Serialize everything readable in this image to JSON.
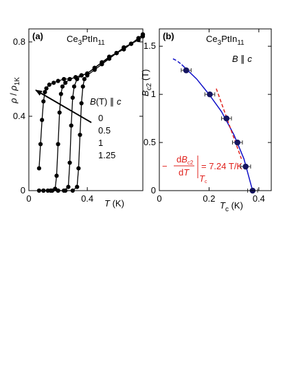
{
  "chart_data": [
    {
      "type": "line",
      "panel_label": "(a)",
      "title_parts": [
        "Ce",
        "3",
        "PtIn",
        "11"
      ],
      "xlabel_parts": [
        "T",
        " (K)"
      ],
      "ylabel_parts": [
        "ρ",
        " / ",
        "ρ",
        "1K"
      ],
      "legend_title_parts": [
        "B",
        "(T) ∥ ",
        "c"
      ],
      "xlim": [
        0,
        0.78
      ],
      "ylim": [
        0,
        0.87
      ],
      "xticks": [
        0,
        0.4
      ],
      "yticks": [
        0,
        0.4,
        0.8
      ],
      "marker": true,
      "series": [
        {
          "name": "0",
          "color": "#000000",
          "x": [
            0.15,
            0.2,
            0.25,
            0.3,
            0.33,
            0.34,
            0.35,
            0.36,
            0.37,
            0.38,
            0.4,
            0.45,
            0.5,
            0.55,
            0.6,
            0.65,
            0.7,
            0.75,
            0.78
          ],
          "values": [
            0,
            0,
            0,
            0,
            0.02,
            0.12,
            0.3,
            0.47,
            0.56,
            0.6,
            0.62,
            0.65,
            0.68,
            0.71,
            0.74,
            0.76,
            0.79,
            0.81,
            0.83
          ]
        },
        {
          "name": "0.5",
          "color": "#000000",
          "x": [
            0.1,
            0.15,
            0.2,
            0.24,
            0.27,
            0.28,
            0.29,
            0.3,
            0.31,
            0.33,
            0.36,
            0.4,
            0.45,
            0.5,
            0.55,
            0.6,
            0.65,
            0.7,
            0.75,
            0.78
          ],
          "values": [
            0,
            0,
            0,
            0,
            0.02,
            0.15,
            0.35,
            0.5,
            0.56,
            0.6,
            0.62,
            0.63,
            0.66,
            0.69,
            0.72,
            0.74,
            0.77,
            0.79,
            0.82,
            0.84
          ]
        },
        {
          "name": "1",
          "color": "#000000",
          "x": [
            0.07,
            0.1,
            0.13,
            0.16,
            0.18,
            0.19,
            0.2,
            0.21,
            0.22,
            0.23,
            0.25,
            0.28,
            0.32,
            0.36,
            0.4,
            0.45,
            0.5,
            0.55,
            0.6,
            0.65,
            0.7,
            0.75,
            0.78
          ],
          "values": [
            0,
            0,
            0,
            0,
            0.01,
            0.08,
            0.25,
            0.42,
            0.52,
            0.56,
            0.58,
            0.6,
            0.61,
            0.62,
            0.63,
            0.66,
            0.69,
            0.72,
            0.74,
            0.77,
            0.79,
            0.82,
            0.84
          ]
        },
        {
          "name": "1.25",
          "color": "#000000",
          "x": [
            0.07,
            0.08,
            0.09,
            0.1,
            0.11,
            0.12,
            0.14,
            0.17,
            0.2,
            0.24,
            0.28,
            0.32,
            0.36,
            0.4,
            0.45,
            0.5,
            0.55,
            0.6,
            0.65,
            0.7,
            0.75,
            0.78
          ],
          "values": [
            0.12,
            0.25,
            0.38,
            0.48,
            0.53,
            0.55,
            0.57,
            0.58,
            0.59,
            0.6,
            0.6,
            0.61,
            0.62,
            0.63,
            0.66,
            0.69,
            0.71,
            0.74,
            0.77,
            0.79,
            0.82,
            0.84
          ]
        }
      ]
    },
    {
      "type": "scatter",
      "panel_label": "(b)",
      "title_parts": [
        "Ce",
        "3",
        "PtIn",
        "11"
      ],
      "annotation_parts": [
        "B",
        " ∥ ",
        "c"
      ],
      "xlabel_parts": [
        "T",
        "c",
        " (K)"
      ],
      "ylabel_parts": [
        "B",
        "c2",
        " (T)"
      ],
      "xlim": [
        0,
        0.45
      ],
      "ylim": [
        0,
        1.68
      ],
      "xticks": [
        0,
        0.2,
        0.4
      ],
      "yticks": [
        0,
        0.5,
        1,
        1.5
      ],
      "series": [
        {
          "color": "#151560",
          "x": [
            0.108,
            0.203,
            0.27,
            0.314,
            0.347,
            0.375
          ],
          "values": [
            1.25,
            1.0,
            0.75,
            0.5,
            0.25,
            0
          ],
          "xerr": [
            0.02,
            0.02,
            0.02,
            0.02,
            0.02,
            0.02
          ]
        }
      ],
      "fits": [
        {
          "color": "#1010c8",
          "dash": true,
          "x": [
            0.055,
            0.07,
            0.09
          ],
          "values": [
            1.37,
            1.35,
            1.31
          ]
        },
        {
          "color": "#1010c8",
          "dash": false,
          "x": [
            0.09,
            0.11,
            0.15,
            0.2,
            0.25,
            0.3,
            0.34,
            0.375
          ],
          "values": [
            1.31,
            1.26,
            1.16,
            1.0,
            0.82,
            0.58,
            0.33,
            0
          ]
        },
        {
          "color": "#e0201b",
          "dash": true,
          "x": [
            0.229,
            0.33
          ],
          "values": [
            1.06,
            0.33
          ]
        }
      ],
      "formula": {
        "color": "#e0201b",
        "sign": "−",
        "numerator": [
          "d",
          "B",
          "c2"
        ],
        "denominator": [
          "d",
          "T"
        ],
        "eval_at": [
          "T",
          "c"
        ],
        "result": "= 7.24 T/K"
      }
    }
  ]
}
